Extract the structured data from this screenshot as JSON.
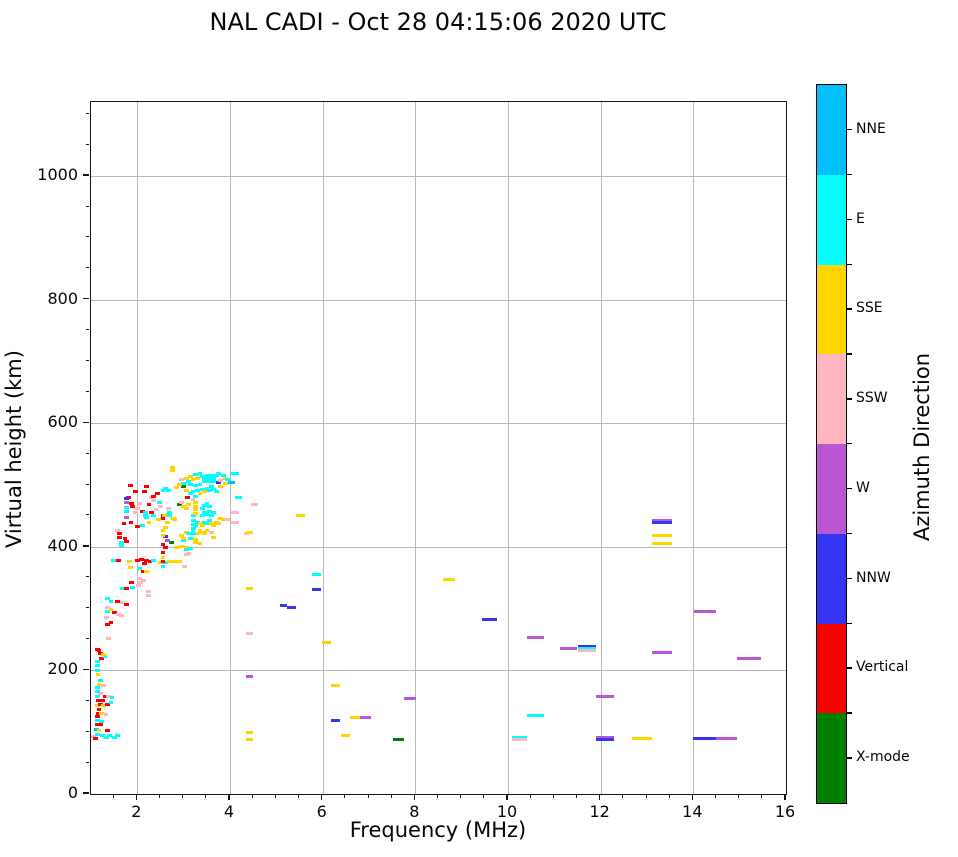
{
  "title": "NAL CADI - Oct 28 04:15:06 2020 UTC",
  "chart_data": {
    "type": "scatter",
    "title": "NAL CADI - Oct 28 04:15:06 2020 UTC",
    "xlabel": "Frequency (MHz)",
    "ylabel": "Virtual height (km)",
    "xlim": [
      1,
      16
    ],
    "ylim": [
      0,
      1120
    ],
    "xticks": [
      2,
      4,
      6,
      8,
      10,
      12,
      14,
      16
    ],
    "yticks": [
      0,
      200,
      400,
      600,
      800,
      1000
    ],
    "x_minor_step": 0.5,
    "y_minor_step": 50,
    "grid": true,
    "colorbar": {
      "label": "Azimuth Direction",
      "categories": [
        "NNE",
        "E",
        "SSE",
        "SSW",
        "W",
        "NNW",
        "Vertical",
        "X-mode"
      ],
      "colors": [
        "#00bfff",
        "#00ffff",
        "#ffd400",
        "#ffb6c1",
        "#ba55d3",
        "#3535f3",
        "#fb0000",
        "#008000"
      ]
    },
    "point_format": "[freq_MHz, height_km, color_index, optional_dash_width_MHz]",
    "points": [
      [
        1.0,
        93,
        3
      ],
      [
        1.05,
        90,
        6
      ],
      [
        1.07,
        105,
        0
      ],
      [
        1.08,
        97,
        1
      ],
      [
        1.12,
        102,
        2
      ],
      [
        1.2,
        94,
        1
      ],
      [
        1.28,
        92,
        1
      ],
      [
        1.35,
        94,
        1
      ],
      [
        1.45,
        92,
        1
      ],
      [
        1.52,
        95,
        1
      ],
      [
        1.3,
        102,
        6
      ],
      [
        1.08,
        112,
        6
      ],
      [
        1.15,
        112,
        6
      ],
      [
        1.18,
        118,
        1
      ],
      [
        1.08,
        119,
        1
      ],
      [
        1.08,
        125,
        6
      ],
      [
        1.1,
        131,
        6
      ],
      [
        1.18,
        131,
        2
      ],
      [
        1.27,
        129,
        3
      ],
      [
        1.12,
        136,
        6
      ],
      [
        1.08,
        143,
        2
      ],
      [
        1.15,
        145,
        6
      ],
      [
        1.22,
        143,
        2
      ],
      [
        1.3,
        145,
        6
      ],
      [
        1.38,
        148,
        1
      ],
      [
        1.1,
        151,
        6
      ],
      [
        1.2,
        152,
        6
      ],
      [
        1.08,
        158,
        1
      ],
      [
        1.15,
        162,
        3
      ],
      [
        1.25,
        158,
        6
      ],
      [
        1.32,
        158,
        3
      ],
      [
        1.4,
        156,
        1
      ],
      [
        1.08,
        166,
        1
      ],
      [
        1.08,
        172,
        1
      ],
      [
        1.22,
        176,
        3
      ],
      [
        1.12,
        178,
        2
      ],
      [
        1.15,
        184,
        1
      ],
      [
        1.1,
        194,
        2
      ],
      [
        1.08,
        200,
        1
      ],
      [
        1.08,
        208,
        1
      ],
      [
        1.08,
        215,
        1
      ],
      [
        1.18,
        220,
        6
      ],
      [
        1.15,
        227,
        6
      ],
      [
        1.12,
        233,
        6
      ],
      [
        1.25,
        223,
        1
      ],
      [
        1.22,
        226,
        2
      ],
      [
        1.08,
        234,
        6
      ],
      [
        1.32,
        252,
        3
      ],
      [
        1.3,
        274,
        6
      ],
      [
        1.28,
        286,
        3
      ],
      [
        1.38,
        278,
        6
      ],
      [
        1.3,
        296,
        1
      ],
      [
        1.3,
        302,
        3
      ],
      [
        1.38,
        298,
        2
      ],
      [
        1.45,
        294,
        6
      ],
      [
        1.55,
        291,
        3
      ],
      [
        1.6,
        289,
        3
      ],
      [
        1.3,
        317,
        1
      ],
      [
        1.38,
        312,
        1
      ],
      [
        1.52,
        312,
        6
      ],
      [
        1.62,
        310,
        3
      ],
      [
        1.72,
        307,
        6
      ],
      [
        1.62,
        332,
        1
      ],
      [
        1.72,
        332,
        6
      ],
      [
        1.85,
        334,
        1
      ],
      [
        1.82,
        342,
        6
      ],
      [
        1.97,
        337,
        3
      ],
      [
        2.02,
        342,
        3
      ],
      [
        2.08,
        345,
        3
      ],
      [
        2.0,
        349,
        3
      ],
      [
        2.18,
        322,
        3
      ],
      [
        2.18,
        328,
        3
      ],
      [
        1.8,
        366,
        2
      ],
      [
        2.0,
        365,
        1
      ],
      [
        2.08,
        360,
        6
      ],
      [
        2.15,
        360,
        2
      ],
      [
        1.43,
        378,
        1
      ],
      [
        1.55,
        378,
        6
      ],
      [
        1.78,
        376,
        2
      ],
      [
        1.95,
        378,
        6
      ],
      [
        2.03,
        380,
        6
      ],
      [
        2.1,
        373,
        6
      ],
      [
        2.15,
        378,
        6
      ],
      [
        2.22,
        376,
        6
      ],
      [
        2.3,
        378,
        1
      ],
      [
        2.45,
        375,
        2
      ],
      [
        2.55,
        375,
        1
      ],
      [
        2.5,
        368,
        1
      ],
      [
        2.5,
        376,
        6
      ],
      [
        2.5,
        383,
        2
      ],
      [
        2.5,
        391,
        6
      ],
      [
        2.5,
        404,
        6
      ],
      [
        2.55,
        399,
        6
      ],
      [
        2.65,
        376,
        2
      ],
      [
        2.75,
        377,
        2
      ],
      [
        2.85,
        376,
        2
      ],
      [
        2.8,
        399,
        2
      ],
      [
        2.9,
        401,
        2
      ],
      [
        3.0,
        399,
        2
      ],
      [
        2.97,
        368,
        3
      ],
      [
        3.0,
        388,
        3
      ],
      [
        3.05,
        390,
        3
      ],
      [
        3.0,
        396,
        1
      ],
      [
        3.1,
        398,
        1
      ],
      [
        2.95,
        410,
        1
      ],
      [
        3.2,
        407,
        2
      ],
      [
        3.3,
        406,
        2
      ],
      [
        2.68,
        407,
        7
      ],
      [
        2.6,
        410,
        4
      ],
      [
        2.55,
        417,
        5
      ],
      [
        2.5,
        419,
        2
      ],
      [
        2.5,
        426,
        2
      ],
      [
        2.55,
        431,
        2
      ],
      [
        2.6,
        440,
        2
      ],
      [
        2.5,
        446,
        6
      ],
      [
        2.5,
        451,
        6
      ],
      [
        2.62,
        452,
        2
      ],
      [
        2.75,
        444,
        2
      ],
      [
        2.9,
        419,
        2
      ],
      [
        2.95,
        414,
        2
      ],
      [
        3.0,
        423,
        2
      ],
      [
        3.05,
        421,
        1
      ],
      [
        3.1,
        414,
        1
      ],
      [
        3.15,
        427,
        1
      ],
      [
        3.2,
        412,
        2
      ],
      [
        3.25,
        421,
        2
      ],
      [
        3.3,
        427,
        2
      ],
      [
        3.35,
        423,
        2
      ],
      [
        3.4,
        421,
        2
      ],
      [
        3.45,
        427,
        2
      ],
      [
        3.55,
        424,
        3
      ],
      [
        3.6,
        415,
        2
      ],
      [
        3.2,
        434,
        1
      ],
      [
        3.25,
        440,
        1
      ],
      [
        3.3,
        438,
        2
      ],
      [
        3.35,
        434,
        2
      ],
      [
        3.4,
        440,
        1
      ],
      [
        3.45,
        438,
        1
      ],
      [
        3.5,
        442,
        1
      ],
      [
        3.55,
        438,
        2
      ],
      [
        3.6,
        434,
        2
      ],
      [
        3.65,
        440,
        2
      ],
      [
        3.7,
        438,
        2
      ],
      [
        3.75,
        446,
        2
      ],
      [
        3.8,
        444,
        2
      ],
      [
        3.9,
        444,
        3
      ],
      [
        4.05,
        440,
        7
      ],
      [
        4.3,
        422,
        3
      ],
      [
        1.66,
        438,
        6
      ],
      [
        1.81,
        440,
        6
      ],
      [
        1.95,
        433,
        6
      ],
      [
        2.05,
        434,
        1
      ],
      [
        1.72,
        447,
        4
      ],
      [
        1.56,
        421,
        6
      ],
      [
        1.56,
        415,
        6
      ],
      [
        1.52,
        427,
        3
      ],
      [
        1.68,
        414,
        6
      ],
      [
        1.72,
        409,
        6
      ],
      [
        1.6,
        407,
        1
      ],
      [
        1.6,
        402,
        1
      ],
      [
        2.2,
        440,
        2
      ],
      [
        2.15,
        448,
        1
      ],
      [
        2.25,
        455,
        6
      ],
      [
        2.3,
        450,
        1
      ],
      [
        2.4,
        445,
        2
      ],
      [
        2.05,
        457,
        6
      ],
      [
        2.12,
        450,
        1
      ],
      [
        2.12,
        455,
        1
      ],
      [
        2.53,
        450,
        2
      ],
      [
        2.64,
        450,
        1
      ],
      [
        2.64,
        456,
        1
      ],
      [
        2.72,
        446,
        2
      ],
      [
        1.72,
        458,
        1
      ],
      [
        1.72,
        463,
        1
      ],
      [
        2.62,
        462,
        3
      ],
      [
        3.16,
        421,
        1
      ],
      [
        3.16,
        429,
        1
      ],
      [
        3.16,
        436,
        1
      ],
      [
        3.16,
        443,
        1
      ],
      [
        3.16,
        450,
        1
      ],
      [
        3.2,
        454,
        2
      ],
      [
        3.2,
        460,
        2
      ],
      [
        3.2,
        466,
        2
      ],
      [
        3.2,
        472,
        2
      ],
      [
        3.35,
        450,
        1
      ],
      [
        3.4,
        455,
        1
      ],
      [
        3.45,
        452,
        1
      ],
      [
        3.5,
        457,
        1
      ],
      [
        3.55,
        450,
        1
      ],
      [
        3.6,
        455,
        1
      ],
      [
        3.35,
        462,
        1
      ],
      [
        3.4,
        467,
        1
      ],
      [
        3.45,
        470,
        1
      ],
      [
        3.5,
        465,
        1
      ],
      [
        2.85,
        468,
        7
      ],
      [
        2.95,
        465,
        2
      ],
      [
        3.0,
        462,
        2
      ],
      [
        3.05,
        468,
        2
      ],
      [
        1.9,
        455,
        3
      ],
      [
        1.95,
        462,
        3
      ],
      [
        2.0,
        470,
        3
      ],
      [
        1.85,
        465,
        6
      ],
      [
        2.25,
        480,
        3
      ],
      [
        2.3,
        475,
        3
      ],
      [
        2.35,
        460,
        3
      ],
      [
        2.42,
        472,
        1
      ],
      [
        2.45,
        465,
        3
      ],
      [
        4.15,
        480,
        1
      ],
      [
        1.75,
        480,
        6
      ],
      [
        1.72,
        478,
        5
      ],
      [
        1.72,
        472,
        4
      ],
      [
        1.82,
        470,
        6
      ],
      [
        2.2,
        468,
        6
      ],
      [
        2.3,
        482,
        6
      ],
      [
        2.38,
        486,
        6
      ],
      [
        2.1,
        489,
        6
      ],
      [
        1.8,
        499,
        6
      ],
      [
        1.9,
        489,
        6
      ],
      [
        2.15,
        497,
        6
      ],
      [
        2.5,
        491,
        1
      ],
      [
        2.55,
        495,
        1
      ],
      [
        2.62,
        491,
        1
      ],
      [
        2.7,
        523,
        2
      ],
      [
        2.7,
        529,
        2
      ],
      [
        2.95,
        498,
        7
      ],
      [
        3.0,
        492,
        2
      ],
      [
        3.03,
        480,
        6
      ],
      [
        3.15,
        476,
        3
      ],
      [
        2.9,
        472,
        3
      ],
      [
        3.1,
        486,
        1
      ],
      [
        3.15,
        489,
        1
      ],
      [
        3.2,
        482,
        1
      ],
      [
        3.25,
        491,
        1
      ],
      [
        3.3,
        487,
        2
      ],
      [
        3.35,
        493,
        1
      ],
      [
        3.4,
        489,
        2
      ],
      [
        3.45,
        495,
        1
      ],
      [
        3.5,
        491,
        1
      ],
      [
        3.55,
        497,
        1
      ],
      [
        3.6,
        493,
        1
      ],
      [
        3.65,
        489,
        1
      ],
      [
        3.7,
        504,
        5
      ],
      [
        3.75,
        498,
        2
      ],
      [
        2.8,
        496,
        2
      ],
      [
        2.85,
        501,
        2
      ],
      [
        2.9,
        509,
        3
      ],
      [
        2.95,
        503,
        1
      ],
      [
        3.0,
        511,
        2
      ],
      [
        3.05,
        506,
        1
      ],
      [
        3.1,
        501,
        1
      ],
      [
        3.1,
        514,
        2
      ],
      [
        3.15,
        509,
        2
      ],
      [
        3.2,
        499,
        1
      ],
      [
        3.2,
        517,
        1
      ],
      [
        3.25,
        511,
        2
      ],
      [
        3.3,
        501,
        1
      ],
      [
        3.3,
        519,
        1
      ],
      [
        3.35,
        514,
        1
      ],
      [
        3.4,
        506,
        1
      ],
      [
        3.4,
        511,
        1
      ],
      [
        3.45,
        516,
        1
      ],
      [
        3.5,
        506,
        1
      ],
      [
        3.5,
        511,
        1
      ],
      [
        3.55,
        516,
        1
      ],
      [
        3.6,
        506,
        1
      ],
      [
        3.6,
        511,
        1
      ],
      [
        3.65,
        516,
        1
      ],
      [
        3.7,
        519,
        1
      ],
      [
        3.75,
        508,
        3
      ],
      [
        3.8,
        516,
        1
      ],
      [
        3.85,
        511,
        2
      ],
      [
        3.85,
        503,
        2
      ],
      [
        3.9,
        509,
        1
      ],
      [
        3.95,
        504,
        0,
        0.15
      ],
      [
        4.0,
        519,
        1,
        0.2
      ],
      [
        4.1,
        480,
        1,
        0.12
      ],
      [
        4.0,
        455,
        3,
        0.2
      ],
      [
        4.02,
        439,
        3,
        0.18
      ],
      [
        4.45,
        468,
        3,
        0.16
      ],
      [
        4.35,
        260,
        3,
        0.15
      ],
      [
        4.35,
        190,
        4,
        0.14
      ],
      [
        4.35,
        99,
        2,
        0.15
      ],
      [
        4.35,
        88,
        2,
        0.15
      ],
      [
        4.35,
        424,
        2,
        0.15
      ],
      [
        4.35,
        332,
        2,
        0.15
      ],
      [
        5.43,
        451,
        2,
        0.18
      ],
      [
        5.77,
        355,
        1,
        0.2
      ],
      [
        5.77,
        331,
        5,
        0.2
      ],
      [
        5.07,
        305,
        5,
        0.17
      ],
      [
        5.24,
        302,
        5,
        0.19
      ],
      [
        5.99,
        245,
        2,
        0.2
      ],
      [
        6.18,
        175,
        2,
        0.2
      ],
      [
        6.18,
        119,
        5,
        0.2
      ],
      [
        6.6,
        124,
        2,
        0.2
      ],
      [
        6.8,
        124,
        4,
        0.24
      ],
      [
        6.39,
        94,
        2,
        0.19
      ],
      [
        7.52,
        88,
        7,
        0.24
      ],
      [
        7.76,
        154,
        4,
        0.26
      ],
      [
        8.59,
        347,
        2,
        0.26
      ],
      [
        9.44,
        282,
        5,
        0.32
      ],
      [
        10.42,
        253,
        4,
        0.35
      ],
      [
        10.42,
        127,
        1,
        0.35
      ],
      [
        10.08,
        92,
        1,
        0.34
      ],
      [
        10.08,
        88,
        3,
        0.34
      ],
      [
        11.13,
        235,
        4,
        0.35
      ],
      [
        11.5,
        239,
        5,
        0.4
      ],
      [
        11.5,
        236,
        1,
        0.4
      ],
      [
        11.5,
        232,
        3,
        0.4
      ],
      [
        11.9,
        158,
        4,
        0.38
      ],
      [
        11.9,
        92,
        4,
        0.38
      ],
      [
        11.9,
        88,
        5,
        0.38
      ],
      [
        12.68,
        90,
        2,
        0.43
      ],
      [
        13.11,
        443,
        4,
        0.43
      ],
      [
        13.11,
        439,
        5,
        0.43
      ],
      [
        13.11,
        419,
        2,
        0.43
      ],
      [
        13.11,
        405,
        2,
        0.43
      ],
      [
        13.11,
        229,
        4,
        0.43
      ],
      [
        14.01,
        295,
        4,
        0.47
      ],
      [
        14.95,
        220,
        4,
        0.51
      ],
      [
        13.99,
        90,
        5,
        0.49
      ],
      [
        14.48,
        90,
        4,
        0.47
      ]
    ]
  }
}
